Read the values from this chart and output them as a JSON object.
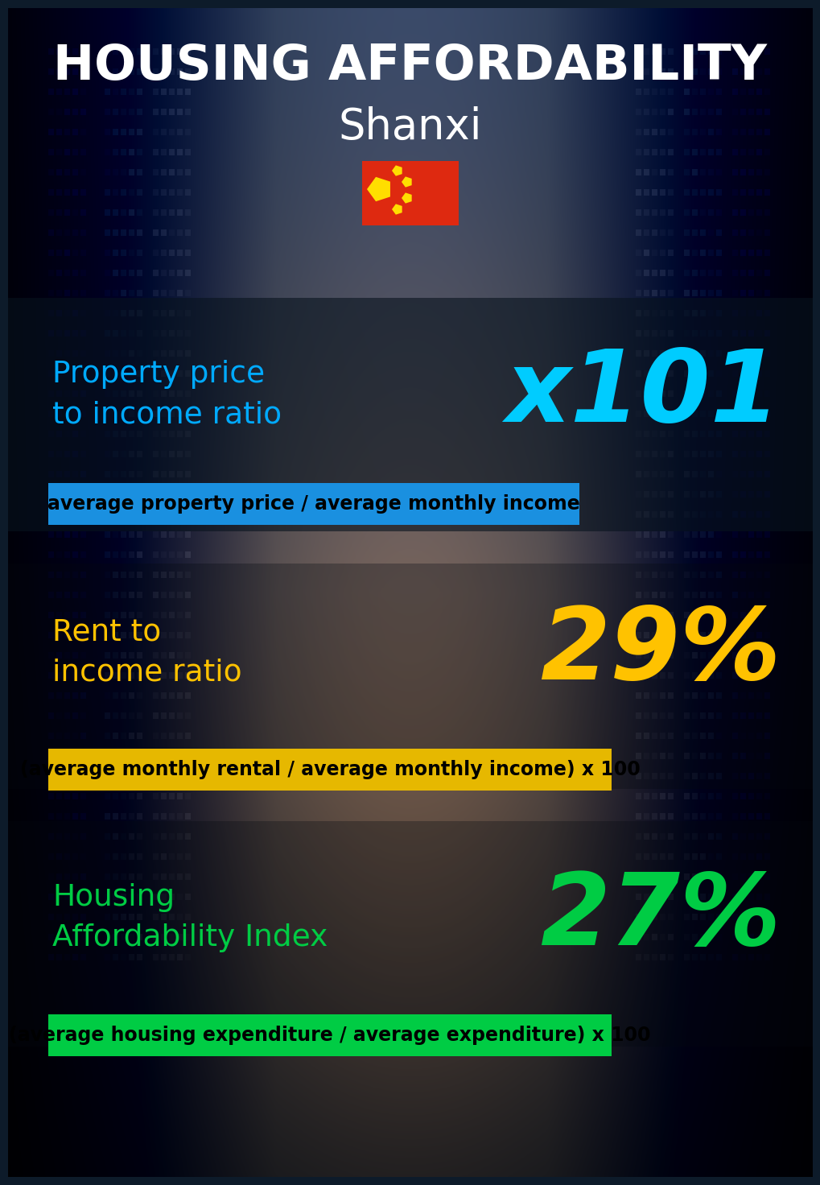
{
  "title_line1": "HOUSING AFFORDABILITY",
  "title_line2": "Shanxi",
  "bg_color": "#0d1b2a",
  "section1_label": "Property price\nto income ratio",
  "section1_value": "x101",
  "section1_label_color": "#00aaff",
  "section1_value_color": "#00ccff",
  "section1_banner_text": "average property price / average monthly income",
  "section1_banner_bg": "#1a90e0",
  "section2_label": "Rent to\nincome ratio",
  "section2_value": "29%",
  "section2_label_color": "#ffc200",
  "section2_value_color": "#ffc200",
  "section2_banner_text": "(average monthly rental / average monthly income) x 100",
  "section2_banner_bg": "#e6b800",
  "section3_label": "Housing\nAffordability Index",
  "section3_value": "27%",
  "section3_label_color": "#00cc44",
  "section3_value_color": "#00cc44",
  "section3_banner_text": "(average housing expenditure / average expenditure) x 100",
  "section3_banner_bg": "#00cc44",
  "title_fontsize": 44,
  "subtitle_fontsize": 38,
  "label_fontsize": 27,
  "value_fontsize": 90,
  "banner_fontsize": 17,
  "flag_rect_color": "#de2910",
  "flag_star_color": "#ffde00"
}
